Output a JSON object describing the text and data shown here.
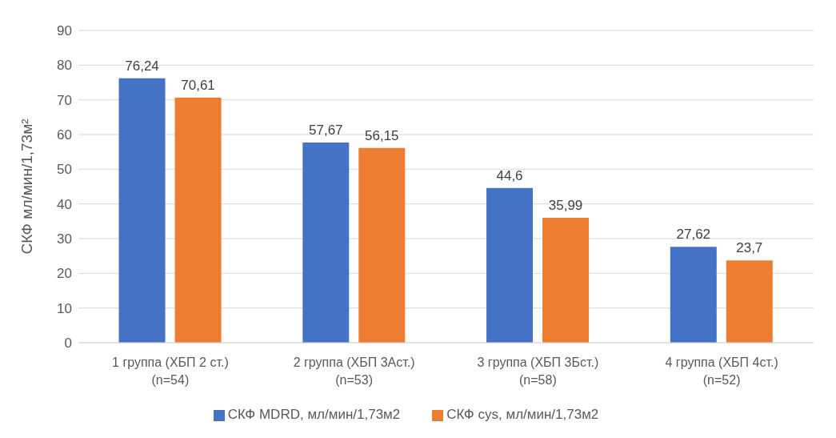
{
  "chart_data": {
    "type": "bar",
    "ylabel": "СКФ мл/мин/1,73м²",
    "categories": [
      "1 группа (ХБП 2 ст.)\n(n=54)",
      "2 группа (ХБП 3Аст.)\n(n=53)",
      "3 группа (ХБП 3Бст.)\n(n=58)",
      "4 группа (ХБП 4ст.)\n(n=52)"
    ],
    "series": [
      {
        "name": "СКФ MDRD, мл/мин/1,73м2",
        "color": "#4472c4",
        "values": [
          76.24,
          57.67,
          44.6,
          27.62
        ],
        "value_labels": [
          "76,24",
          "57,67",
          "44,6",
          "27,62"
        ]
      },
      {
        "name": "СКФ cys, мл/мин/1,73м2",
        "color": "#ed7d31",
        "values": [
          70.61,
          56.15,
          35.99,
          23.7
        ],
        "value_labels": [
          "70,61",
          "56,15",
          "35,99",
          "23,7"
        ]
      }
    ],
    "ylim": [
      0,
      90
    ],
    "yticks": [
      0,
      10,
      20,
      30,
      40,
      50,
      60,
      70,
      80,
      90
    ],
    "grid": "y",
    "legend": "bottom"
  }
}
